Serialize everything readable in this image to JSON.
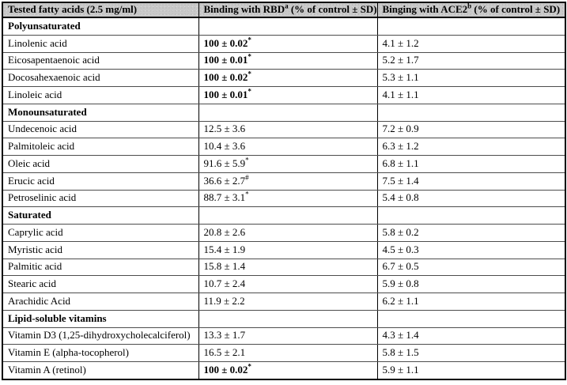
{
  "colors": {
    "header_bg": "#c9c9c9",
    "border": "#000000",
    "text": "#000000"
  },
  "table": {
    "columns": [
      {
        "label": "Tested fatty acids (2.5 mg/ml)",
        "sup": "",
        "suffix": ""
      },
      {
        "label": "Binding with RBD",
        "sup": "a",
        "suffix": " (% of control ± SD)"
      },
      {
        "label": "Binging with ACE2",
        "sup": "b",
        "suffix": " (% of control ± SD)"
      }
    ],
    "sections": [
      {
        "title": "Polyunsaturated",
        "rows": [
          {
            "name": "Linolenic acid",
            "rbd": "100 ± 0.02",
            "rbd_mark": "*",
            "rbd_bold": true,
            "ace2": "4.1 ± 1.2"
          },
          {
            "name": "Eicosapentaenoic acid",
            "rbd": "100 ± 0.01",
            "rbd_mark": "*",
            "rbd_bold": true,
            "ace2": "5.2 ± 1.7"
          },
          {
            "name": "Docosahexaenoic acid",
            "rbd": "100 ± 0.02",
            "rbd_mark": "*",
            "rbd_bold": true,
            "ace2": "5.3 ± 1.1"
          },
          {
            "name": "Linoleic acid",
            "rbd": "100 ± 0.01",
            "rbd_mark": "*",
            "rbd_bold": true,
            "ace2": "4.1 ± 1.1"
          }
        ]
      },
      {
        "title": "Monounsaturated",
        "rows": [
          {
            "name": "Undecenoic acid",
            "rbd": "12.5 ± 3.6",
            "rbd_mark": "",
            "rbd_bold": false,
            "ace2": "7.2 ± 0.9"
          },
          {
            "name": "Palmitoleic acid",
            "rbd": "10.4 ± 3.6",
            "rbd_mark": "",
            "rbd_bold": false,
            "ace2": "6.3 ± 1.2"
          },
          {
            "name": "Oleic acid",
            "rbd": "91.6 ± 5.9",
            "rbd_mark": "*",
            "rbd_bold": false,
            "ace2": "6.8 ± 1.1"
          },
          {
            "name": "Erucic acid",
            "rbd": "36.6 ± 2.7",
            "rbd_mark": "#",
            "rbd_bold": false,
            "ace2": "7.5 ± 1.4"
          },
          {
            "name": "Petroselinic acid",
            "rbd": "88.7 ± 3.1",
            "rbd_mark": "*",
            "rbd_bold": false,
            "ace2": "5.4 ± 0.8"
          }
        ]
      },
      {
        "title": "Saturated",
        "rows": [
          {
            "name": "Caprylic acid",
            "rbd": "20.8 ± 2.6",
            "rbd_mark": "",
            "rbd_bold": false,
            "ace2": "5.8 ± 0.2"
          },
          {
            "name": "Myristic acid",
            "rbd": "15.4 ± 1.9",
            "rbd_mark": "",
            "rbd_bold": false,
            "ace2": "4.5 ± 0.3"
          },
          {
            "name": "Palmitic acid",
            "rbd": "15.8 ± 1.4",
            "rbd_mark": "",
            "rbd_bold": false,
            "ace2": "6.7 ± 0.5"
          },
          {
            "name": "Stearic acid",
            "rbd": "10.7 ± 2.4",
            "rbd_mark": "",
            "rbd_bold": false,
            "ace2": "5.9 ± 0.8"
          },
          {
            "name": "Arachidic Acid",
            "rbd": "11.9 ± 2.2",
            "rbd_mark": "",
            "rbd_bold": false,
            "ace2": "6.2 ± 1.1"
          }
        ]
      },
      {
        "title": "Lipid-soluble vitamins",
        "rows": [
          {
            "name": "Vitamin D3 (1,25-dihydroxycholecalciferol)",
            "rbd": "13.3 ± 1.7",
            "rbd_mark": "",
            "rbd_bold": false,
            "ace2": "4.3 ± 1.4"
          },
          {
            "name": "Vitamin E (alpha-tocopherol)",
            "rbd": "16.5 ± 2.1",
            "rbd_mark": "",
            "rbd_bold": false,
            "ace2": "5.8 ± 1.5"
          },
          {
            "name": "Vitamin A (retinol)",
            "rbd": "100 ± 0.02",
            "rbd_mark": "*",
            "rbd_bold": true,
            "ace2": "5.9 ± 1.1"
          }
        ]
      }
    ]
  }
}
